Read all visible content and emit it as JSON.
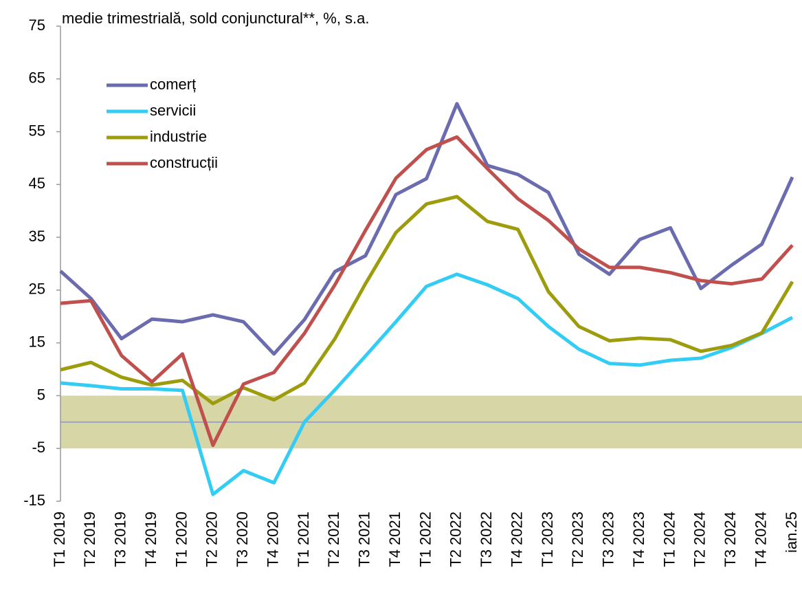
{
  "chart_data": {
    "type": "line",
    "title": "medie trimestrială, sold conjunctural**, %, s.a.",
    "categories": [
      "T1 2019",
      "T2 2019",
      "T3 2019",
      "T4 2019",
      "T1 2020",
      "T2 2020",
      "T3 2020",
      "T4 2020",
      "T1 2021",
      "T2 2021",
      "T3 2021",
      "T4 2021",
      "T1 2022",
      "T2 2022",
      "T3 2022",
      "T4 2022",
      "T1 2023",
      "T2 2023",
      "T3 2023",
      "T4 2023",
      "T1 2024",
      "T2 2024",
      "T3 2024",
      "T4 2024",
      "ian.25"
    ],
    "series": [
      {
        "name": "comerț",
        "color": "#6b6baf",
        "values": [
          28.6,
          23.4,
          15.8,
          19.5,
          19.0,
          20.3,
          19.0,
          12.9,
          19.4,
          28.5,
          31.5,
          43.1,
          46.1,
          60.3,
          48.6,
          46.9,
          43.5,
          31.8,
          28.0,
          34.6,
          36.8,
          25.3,
          29.7,
          33.7,
          46.4
        ]
      },
      {
        "name": "servicii",
        "color": "#33ccf5",
        "values": [
          7.4,
          6.9,
          6.3,
          6.3,
          6.0,
          -13.7,
          -9.2,
          -11.5,
          0.0,
          6.1,
          12.5,
          19.0,
          25.7,
          28.0,
          26.0,
          23.4,
          18.1,
          13.8,
          11.1,
          10.8,
          11.7,
          12.1,
          14.1,
          16.8,
          19.8
        ]
      },
      {
        "name": "industrie",
        "color": "#9c9c0c",
        "values": [
          9.9,
          11.3,
          8.5,
          7.0,
          7.9,
          3.5,
          6.5,
          4.2,
          7.4,
          15.8,
          26.2,
          35.9,
          41.3,
          42.7,
          38.0,
          36.5,
          24.7,
          18.1,
          15.4,
          15.9,
          15.6,
          13.4,
          14.5,
          16.9,
          26.6
        ]
      },
      {
        "name": "construcții",
        "color": "#c0504d",
        "values": [
          22.5,
          23.0,
          12.6,
          7.6,
          12.9,
          -4.4,
          7.2,
          9.4,
          16.8,
          26.0,
          36.3,
          46.2,
          51.6,
          54.0,
          48.0,
          42.3,
          38.2,
          32.8,
          29.3,
          29.3,
          28.3,
          26.8,
          26.2,
          27.1,
          33.5
        ]
      }
    ],
    "ylim": [
      -15,
      75
    ],
    "yticks": [
      -15,
      -5,
      5,
      15,
      25,
      35,
      45,
      55,
      65,
      75
    ],
    "band": [
      -5,
      5
    ],
    "band_color": "#d6d6a6",
    "reference_line": 0,
    "reference_color": "#a0a0c8",
    "legend": "upper-left"
  }
}
